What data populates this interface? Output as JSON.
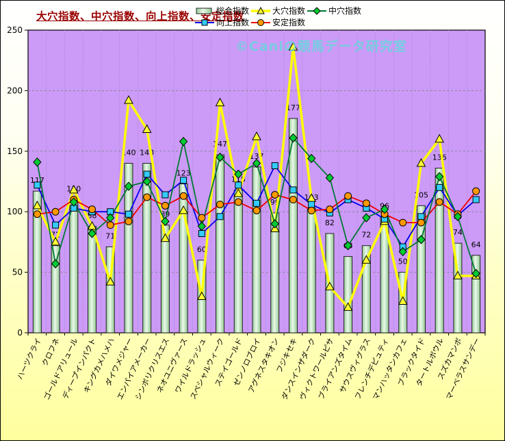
{
  "title": "大穴指数、中穴指数、向上指数、安定指数",
  "watermark": "©Caniの競馬データ研究室",
  "colors": {
    "title_text": "#990000",
    "plot_background": "#CC9AF7",
    "outer_background_top": "#FFFFFF",
    "outer_background_bottom": "#FFFF9E",
    "bar_fill_edge": "#92C892",
    "bar_fill_center": "#EAF9EA",
    "bar_outline": "#222222",
    "ooana_line": "#FFFF00",
    "ooana_marker": "#FFFF33",
    "chuana_line": "#007A33",
    "chuana_marker": "#00CC33",
    "koujou_line": "#0000EE",
    "koujou_marker": "#33CCFF",
    "antei_line": "#EE0000",
    "antei_marker": "#FF9900",
    "gridline_h": "#8A8A9A",
    "gridline_v": "#A585CE",
    "axis_text": "#000000",
    "watermark_text": "#69D6DD"
  },
  "legend": {
    "rows": [
      [
        "総合指数",
        "大穴指数",
        "中穴指数"
      ],
      [
        "向上指数",
        "安定指数"
      ]
    ]
  },
  "chart_data": {
    "type": "bar",
    "subtype": "bar-line-combo",
    "title": "大穴指数、中穴指数、向上指数、安定指数",
    "xlabel": "",
    "ylabel": "",
    "ylim": [
      0,
      250
    ],
    "yticks": [
      0,
      50,
      100,
      150,
      200,
      250
    ],
    "grid": "dashed horizontal and vertical",
    "legend_position": "top",
    "bar_labels_shown": true,
    "categories": [
      "ハーツクライ",
      "クロフネ",
      "ゴールドアリュール",
      "ディープインパクト",
      "キングカメハメハ",
      "ダイワメジャー",
      "エンパイアメーカー",
      "シンボリクリスエス",
      "ネオユニヴァース",
      "ワイルドラッシュ",
      "スペシャルウィーク",
      "ステイゴールド",
      "ゼンノロブロイ",
      "アグネスタキオン",
      "フジキセキ",
      "ダンスインザダーク",
      "ヴィクトワールピサ",
      "ブライアンズタイム",
      "サウスヴィグラス",
      "フレンチデピュティ",
      "マンハッタンカフェ",
      "ブラックタイド",
      "タートルボウル",
      "スズカマンボ",
      "マーベラスサンデー"
    ],
    "series": [
      {
        "name": "総合指数",
        "type": "bar",
        "marker": "bar",
        "values": [
          117,
          72,
          110,
          88,
          71,
          140,
          140,
          89,
          123,
          60,
          147,
          118,
          137,
          99,
          177,
          103,
          82,
          63,
          72,
          96,
          50,
          105,
          136,
          74,
          64
        ]
      },
      {
        "name": "大穴指数",
        "type": "line",
        "marker": "triangle",
        "values": [
          105,
          75,
          118,
          88,
          42,
          192,
          168,
          78,
          101,
          30,
          190,
          115,
          162,
          86,
          236,
          111,
          38,
          21,
          60,
          92,
          26,
          140,
          160,
          47,
          47
        ]
      },
      {
        "name": "中穴指数",
        "type": "line",
        "marker": "diamond",
        "values": [
          141,
          57,
          108,
          82,
          95,
          121,
          125,
          92,
          158,
          88,
          145,
          131,
          140,
          90,
          161,
          144,
          128,
          72,
          95,
          102,
          67,
          77,
          129,
          96,
          49
        ]
      },
      {
        "name": "向上指数",
        "type": "line",
        "marker": "square",
        "values": [
          122,
          89,
          103,
          100,
          100,
          98,
          131,
          114,
          126,
          82,
          96,
          122,
          107,
          138,
          118,
          106,
          99,
          110,
          103,
          94,
          71,
          96,
          120,
          97,
          110
        ]
      },
      {
        "name": "安定指数",
        "type": "line",
        "marker": "circle",
        "values": [
          98,
          100,
          110,
          102,
          89,
          92,
          112,
          105,
          113,
          95,
          106,
          108,
          101,
          114,
          110,
          101,
          102,
          113,
          107,
          98,
          91,
          91,
          108,
          98,
          117
        ]
      }
    ]
  }
}
